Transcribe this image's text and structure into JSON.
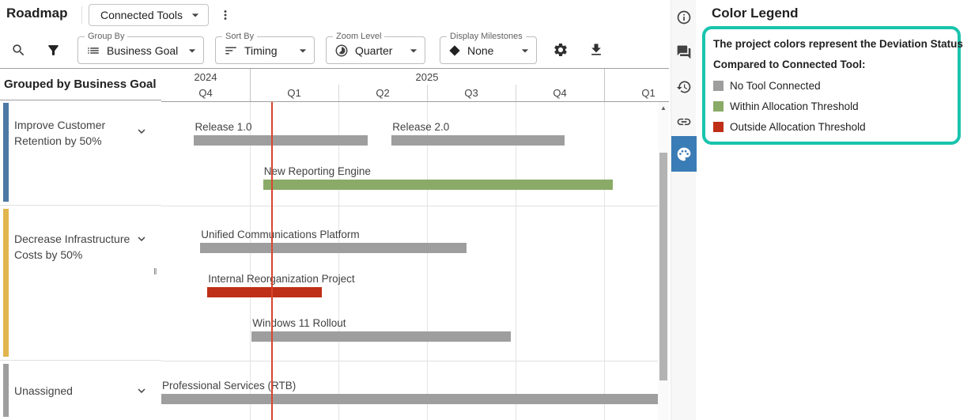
{
  "header": {
    "title": "Roadmap",
    "scenario_selector": "Connected Tools"
  },
  "toolbar": {
    "icons": [
      "search-icon",
      "filter-icon",
      "settings-icon",
      "download-icon"
    ],
    "group_by_label": "Group By",
    "group_by_value": "Business Goal",
    "group_by_icon": "view-list-icon",
    "sort_by_label": "Sort By",
    "sort_by_value": "Timing",
    "sort_by_icon": "sort-icon",
    "zoom_label": "Zoom Level",
    "zoom_value": "Quarter",
    "zoom_icon": "timelapse-icon",
    "milestones_label": "Display Milestones",
    "milestones_value": "None",
    "milestones_icon": "diamond-icon"
  },
  "left_panel": {
    "header": "Grouped by Business Goal",
    "groups": [
      {
        "label": "Improve Customer Retention by 50%",
        "color": "#4c79a5"
      },
      {
        "label": "Decrease Infrastructure Costs by 50%",
        "color": "#e1b64e"
      },
      {
        "label": "Unassigned",
        "color": "#9e9e9e"
      }
    ]
  },
  "timeline": {
    "years": [
      {
        "label": "2024",
        "quarters": [
          "Q4"
        ]
      },
      {
        "label": "2025",
        "quarters": [
          "Q1",
          "Q2",
          "Q3",
          "Q4"
        ]
      },
      {
        "label": "",
        "quarters": [
          "Q1"
        ]
      }
    ]
  },
  "chart_data": {
    "type": "gantt",
    "time_axis": {
      "unit": "quarter",
      "start": "2024-Q4",
      "visible_quarters": [
        "2024-Q4",
        "2025-Q1",
        "2025-Q2",
        "2025-Q3",
        "2025-Q4",
        "2026-Q1"
      ]
    },
    "today_marker_q": 1.24,
    "status_colors": {
      "no_tool": "#9e9e9e",
      "within": "#8aab68",
      "outside": "#bf2e16"
    },
    "bars": [
      {
        "label": "Release 1.0",
        "group": 0,
        "row": 0,
        "start_q": 0.37,
        "end_q": 2.33,
        "status": "no_tool"
      },
      {
        "label": "Release 2.0",
        "group": 0,
        "row": 0,
        "start_q": 2.6,
        "end_q": 4.55,
        "status": "no_tool"
      },
      {
        "label": "New Reporting Engine",
        "group": 0,
        "row": 1,
        "start_q": 1.15,
        "end_q": 5.1,
        "status": "within"
      },
      {
        "label": "Unified Communications Platform",
        "group": 1,
        "row": 0,
        "start_q": 0.44,
        "end_q": 3.45,
        "status": "no_tool"
      },
      {
        "label": "Internal Reorganization Project",
        "group": 1,
        "row": 1,
        "start_q": 0.52,
        "end_q": 1.81,
        "status": "outside"
      },
      {
        "label": "Windows 11 Rollout",
        "group": 1,
        "row": 2,
        "start_q": 1.02,
        "end_q": 3.95,
        "status": "no_tool"
      },
      {
        "label": "Professional Services (RTB)",
        "group": 2,
        "row": 0,
        "start_q": 0.0,
        "end_q": 5.73,
        "status": "no_tool"
      }
    ]
  },
  "rail": {
    "active_color": "#3a7cb5",
    "icons": [
      {
        "icon": "info-icon",
        "active": false
      },
      {
        "icon": "comments-icon",
        "active": false
      },
      {
        "icon": "history-icon",
        "active": false
      },
      {
        "icon": "link-icon",
        "active": false
      },
      {
        "icon": "palette-icon",
        "active": true
      }
    ]
  },
  "legend": {
    "title": "Color Legend",
    "line1": "The project colors represent the Deviation Status",
    "line2": "Compared to Connected Tool:",
    "highlight_color": "#19c4ad",
    "items": [
      {
        "label": "No Tool Connected",
        "status": "no_tool"
      },
      {
        "label": "Within Allocation Threshold",
        "status": "within"
      },
      {
        "label": "Outside Allocation Threshold",
        "status": "outside"
      }
    ]
  }
}
